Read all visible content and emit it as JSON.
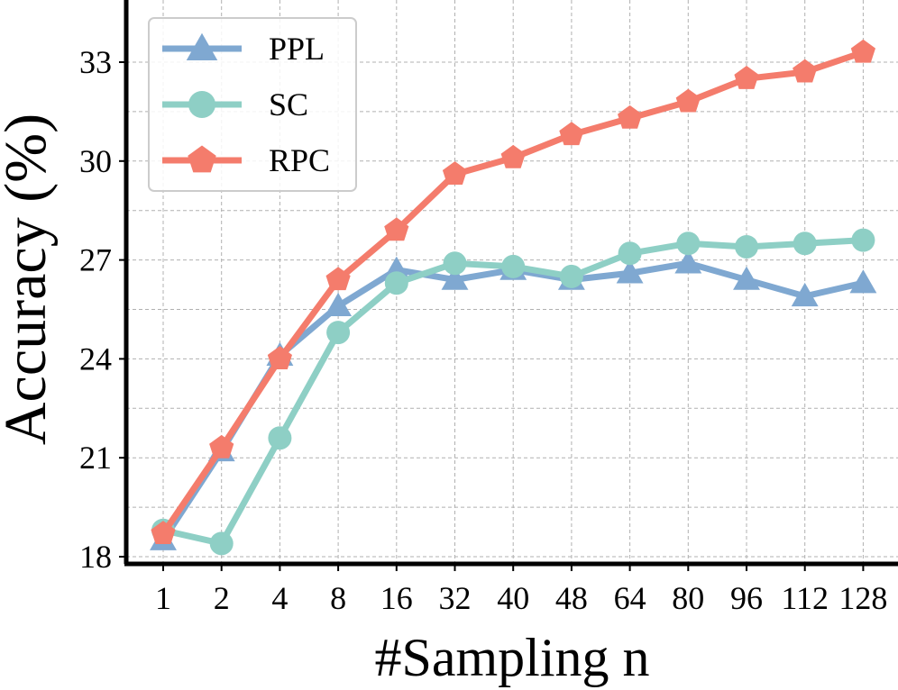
{
  "chart_data": {
    "type": "line",
    "title": "",
    "xlabel": "#Sampling n",
    "ylabel": "Accuracy (%)",
    "categories": [
      "1",
      "2",
      "4",
      "8",
      "16",
      "32",
      "40",
      "48",
      "64",
      "80",
      "96",
      "112",
      "128"
    ],
    "yticks": [
      18,
      21,
      24,
      27,
      30,
      33
    ],
    "grid": true,
    "legend_position": "top-left",
    "series": [
      {
        "name": "PPL",
        "color": "#7fa8d1",
        "marker": "triangle",
        "values": [
          18.5,
          21.2,
          24.1,
          25.6,
          26.7,
          26.4,
          26.7,
          26.4,
          26.6,
          26.9,
          26.4,
          25.9,
          26.3
        ]
      },
      {
        "name": "SC",
        "color": "#8ecfc5",
        "marker": "circle",
        "values": [
          18.8,
          18.4,
          21.6,
          24.8,
          26.3,
          26.9,
          26.8,
          26.5,
          27.2,
          27.5,
          27.4,
          27.5,
          27.6
        ]
      },
      {
        "name": "RPC",
        "color": "#f47c6c",
        "marker": "pentagon",
        "values": [
          18.7,
          21.3,
          24.0,
          26.4,
          27.9,
          29.6,
          30.1,
          30.8,
          31.3,
          31.8,
          32.5,
          32.7,
          33.3
        ]
      }
    ]
  }
}
